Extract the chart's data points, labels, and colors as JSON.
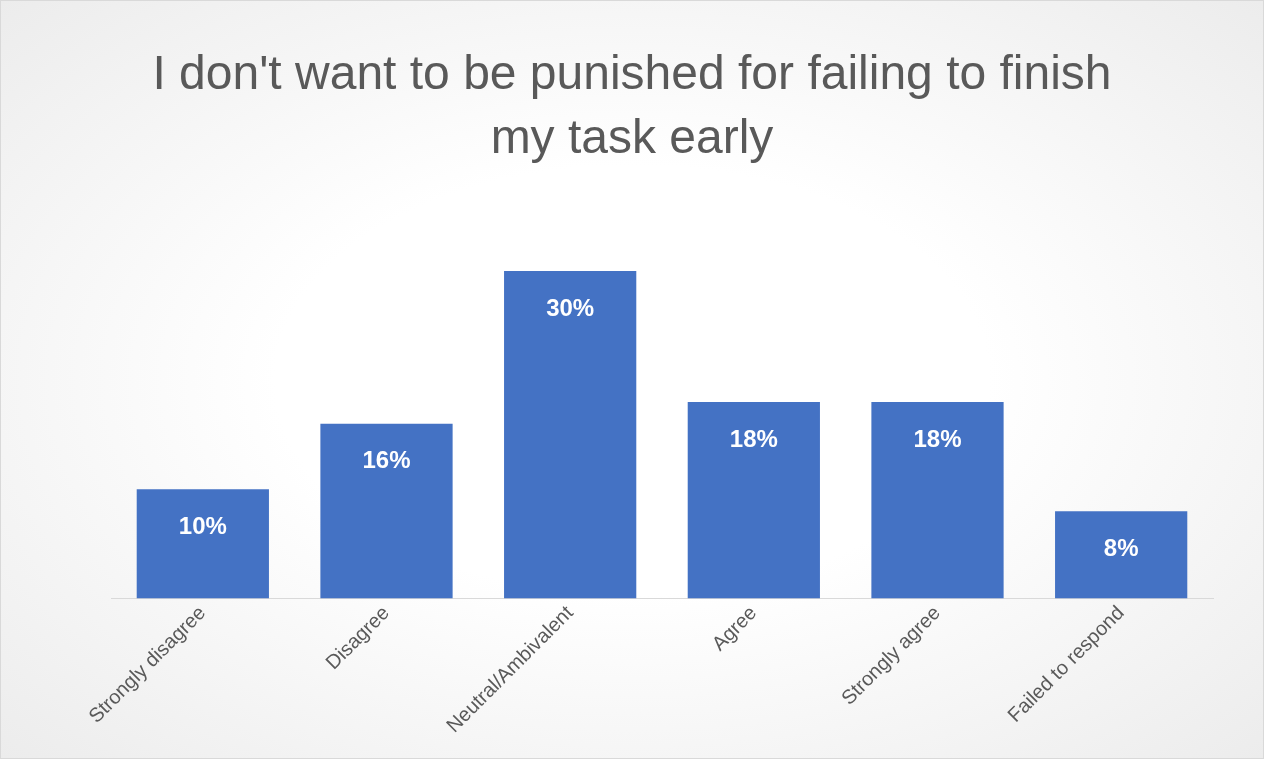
{
  "chart_data": {
    "type": "bar",
    "title": "I don't want to be punished for failing to finish my task early",
    "categories": [
      "Strongly disagree",
      "Disagree",
      "Neutral/Ambivalent",
      "Agree",
      "Strongly agree",
      "Failed to respond"
    ],
    "values": [
      10,
      16,
      30,
      18,
      18,
      8
    ],
    "value_labels": [
      "10%",
      "16%",
      "30%",
      "18%",
      "18%",
      "8%"
    ],
    "color": "#4472c4",
    "grid": false,
    "legend": false
  }
}
